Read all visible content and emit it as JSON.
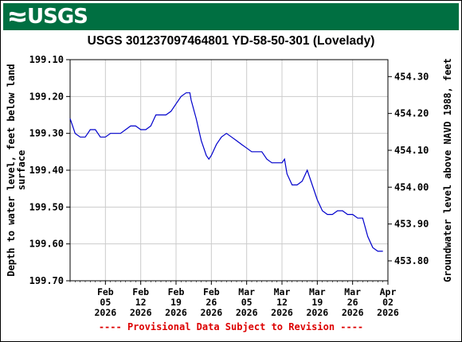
{
  "logo": {
    "text": "USGS",
    "color": "#006f41"
  },
  "title": "USGS 301237097464801 YD-58-50-301 (Lovelady)",
  "footer": "---- Provisional Data Subject to Revision ----",
  "chart_data": {
    "type": "line",
    "title": "USGS 301237097464801 YD-58-50-301 (Lovelady)",
    "ylabel_left": "Depth to water level, feet below land surface",
    "ylabel_left_lines": [
      "Depth to water level, feet below land",
      "surface"
    ],
    "ylabel_right": "Groundwater level above NAVD 1988, feet",
    "ylim_left": [
      199.1,
      199.7
    ],
    "ylim_right": [
      454.346,
      453.746
    ],
    "left_axis_inverted": true,
    "grid": true,
    "left_ticks": [
      "199.10",
      "199.20",
      "199.30",
      "199.40",
      "199.50",
      "199.60",
      "199.70"
    ],
    "right_ticks": [
      "454.30",
      "454.20",
      "454.10",
      "454.00",
      "453.90",
      "453.80"
    ],
    "x_range": [
      "2026-01-29",
      "2026-04-02"
    ],
    "x_ticks": [
      {
        "date": "2026-02-05",
        "lines": [
          "Feb",
          "05",
          "2026"
        ]
      },
      {
        "date": "2026-02-12",
        "lines": [
          "Feb",
          "12",
          "2026"
        ]
      },
      {
        "date": "2026-02-19",
        "lines": [
          "Feb",
          "19",
          "2026"
        ]
      },
      {
        "date": "2026-02-26",
        "lines": [
          "Feb",
          "26",
          "2026"
        ]
      },
      {
        "date": "2026-03-05",
        "lines": [
          "Mar",
          "05",
          "2026"
        ]
      },
      {
        "date": "2026-03-12",
        "lines": [
          "Mar",
          "12",
          "2026"
        ]
      },
      {
        "date": "2026-03-19",
        "lines": [
          "Mar",
          "19",
          "2026"
        ]
      },
      {
        "date": "2026-03-26",
        "lines": [
          "Mar",
          "26",
          "2026"
        ]
      },
      {
        "date": "2026-04-02",
        "lines": [
          "Apr",
          "02",
          "2026"
        ]
      }
    ],
    "series": [
      {
        "color": "#0000cc",
        "points": [
          [
            "2026-01-29",
            199.26
          ],
          [
            "2026-01-29T12",
            199.28
          ],
          [
            "2026-01-30",
            199.3
          ],
          [
            "2026-01-31",
            199.31
          ],
          [
            "2026-02-01",
            199.31
          ],
          [
            "2026-02-01T12",
            199.3
          ],
          [
            "2026-02-02",
            199.29
          ],
          [
            "2026-02-03",
            199.29
          ],
          [
            "2026-02-04",
            199.31
          ],
          [
            "2026-02-05",
            199.31
          ],
          [
            "2026-02-06",
            199.3
          ],
          [
            "2026-02-07",
            199.3
          ],
          [
            "2026-02-08",
            199.3
          ],
          [
            "2026-02-09",
            199.29
          ],
          [
            "2026-02-10",
            199.28
          ],
          [
            "2026-02-11",
            199.28
          ],
          [
            "2026-02-12",
            199.29
          ],
          [
            "2026-02-13",
            199.29
          ],
          [
            "2026-02-14",
            199.28
          ],
          [
            "2026-02-15",
            199.25
          ],
          [
            "2026-02-16",
            199.25
          ],
          [
            "2026-02-17",
            199.25
          ],
          [
            "2026-02-18",
            199.24
          ],
          [
            "2026-02-19",
            199.22
          ],
          [
            "2026-02-20",
            199.2
          ],
          [
            "2026-02-21",
            199.19
          ],
          [
            "2026-02-21T18",
            199.19
          ],
          [
            "2026-02-22",
            199.21
          ],
          [
            "2026-02-23",
            199.26
          ],
          [
            "2026-02-24",
            199.32
          ],
          [
            "2026-02-25",
            199.36
          ],
          [
            "2026-02-25T12",
            199.37
          ],
          [
            "2026-02-26",
            199.36
          ],
          [
            "2026-02-27",
            199.33
          ],
          [
            "2026-02-28",
            199.31
          ],
          [
            "2026-03-01",
            199.3
          ],
          [
            "2026-03-02",
            199.31
          ],
          [
            "2026-03-03",
            199.32
          ],
          [
            "2026-03-04",
            199.33
          ],
          [
            "2026-03-05",
            199.34
          ],
          [
            "2026-03-06",
            199.35
          ],
          [
            "2026-03-07",
            199.35
          ],
          [
            "2026-03-08",
            199.35
          ],
          [
            "2026-03-09",
            199.37
          ],
          [
            "2026-03-10",
            199.38
          ],
          [
            "2026-03-11",
            199.38
          ],
          [
            "2026-03-12",
            199.38
          ],
          [
            "2026-03-12T12",
            199.37
          ],
          [
            "2026-03-13",
            199.41
          ],
          [
            "2026-03-14",
            199.44
          ],
          [
            "2026-03-15",
            199.44
          ],
          [
            "2026-03-16",
            199.43
          ],
          [
            "2026-03-17",
            199.4
          ],
          [
            "2026-03-18",
            199.44
          ],
          [
            "2026-03-19",
            199.48
          ],
          [
            "2026-03-20",
            199.51
          ],
          [
            "2026-03-21",
            199.52
          ],
          [
            "2026-03-22",
            199.52
          ],
          [
            "2026-03-23",
            199.51
          ],
          [
            "2026-03-24",
            199.51
          ],
          [
            "2026-03-25",
            199.52
          ],
          [
            "2026-03-26",
            199.52
          ],
          [
            "2026-03-27",
            199.53
          ],
          [
            "2026-03-28",
            199.53
          ],
          [
            "2026-03-29",
            199.58
          ],
          [
            "2026-03-30",
            199.61
          ],
          [
            "2026-03-31",
            199.62
          ],
          [
            "2026-04-01",
            199.62
          ]
        ]
      }
    ]
  }
}
